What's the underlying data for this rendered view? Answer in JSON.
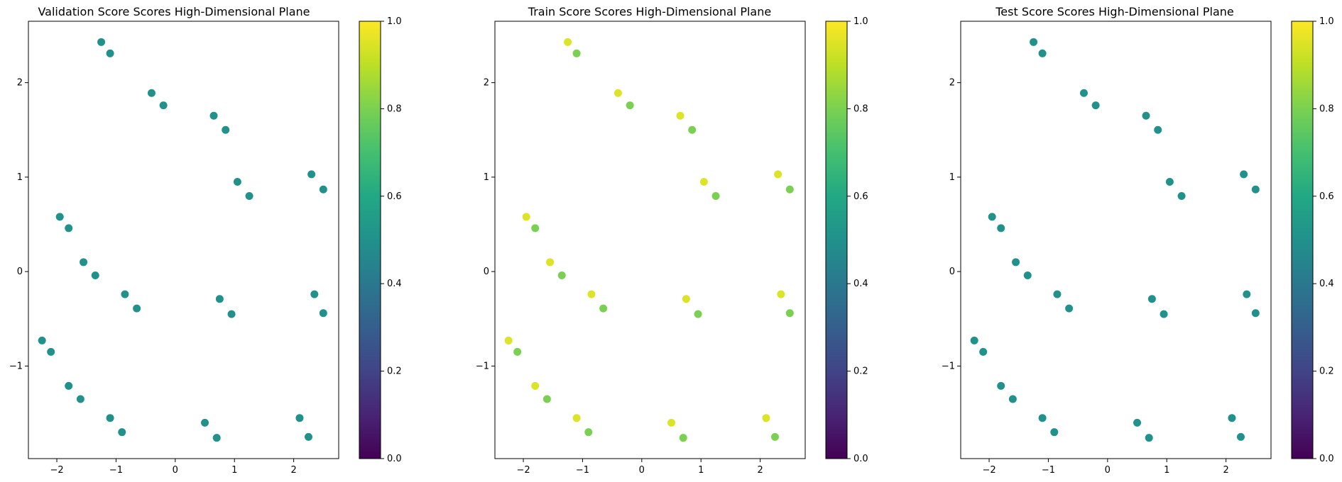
{
  "chart_data": [
    {
      "type": "scatter",
      "title": "Validation Score Scores High-Dimensional Plane",
      "xlabel": "",
      "ylabel": "",
      "xlim": [
        -2.48,
        2.76
      ],
      "ylim": [
        -1.98,
        2.65
      ],
      "xticks": [
        -2,
        -1,
        0,
        1,
        2
      ],
      "xtick_labels": [
        "−2",
        "−1",
        "0",
        "1",
        "2"
      ],
      "yticks": [
        -1,
        0,
        1,
        2
      ],
      "ytick_labels": [
        "−1",
        "0",
        "1",
        "2"
      ],
      "colorbar": {
        "min": 0.0,
        "max": 1.0,
        "ticks": [
          "0.0",
          "0.2",
          "0.4",
          "0.6",
          "0.8",
          "1.0"
        ],
        "colormap": "viridis"
      },
      "grid": false,
      "points": {
        "x": [
          -1.25,
          -1.1,
          -0.4,
          -0.2,
          0.65,
          0.85,
          1.05,
          1.25,
          2.3,
          2.5,
          -1.95,
          -1.8,
          -1.55,
          -1.35,
          -0.85,
          -0.65,
          0.75,
          0.95,
          2.35,
          2.5,
          -2.25,
          -2.1,
          -1.8,
          -1.6,
          -1.1,
          -0.9,
          0.5,
          0.7,
          2.1,
          2.25
        ],
        "y": [
          2.43,
          2.31,
          1.89,
          1.76,
          1.65,
          1.5,
          0.95,
          0.8,
          1.03,
          0.87,
          0.58,
          0.46,
          0.1,
          -0.04,
          -0.24,
          -0.39,
          -0.29,
          -0.45,
          -0.24,
          -0.44,
          -0.73,
          -0.85,
          -1.21,
          -1.35,
          -1.55,
          -1.7,
          -1.6,
          -1.76,
          -1.55,
          -1.75
        ],
        "values": [
          0.5,
          0.5,
          0.5,
          0.5,
          0.5,
          0.5,
          0.5,
          0.5,
          0.5,
          0.5,
          0.5,
          0.5,
          0.5,
          0.5,
          0.5,
          0.5,
          0.5,
          0.5,
          0.5,
          0.5,
          0.5,
          0.5,
          0.5,
          0.5,
          0.5,
          0.5,
          0.5,
          0.5,
          0.5,
          0.5
        ]
      }
    },
    {
      "type": "scatter",
      "title": "Train Score Scores High-Dimensional Plane",
      "xlabel": "",
      "ylabel": "",
      "xlim": [
        -2.48,
        2.76
      ],
      "ylim": [
        -1.98,
        2.65
      ],
      "xticks": [
        -2,
        -1,
        0,
        1,
        2
      ],
      "xtick_labels": [
        "−2",
        "−1",
        "0",
        "1",
        "2"
      ],
      "yticks": [
        -1,
        0,
        1,
        2
      ],
      "ytick_labels": [
        "−1",
        "0",
        "1",
        "2"
      ],
      "colorbar": {
        "min": 0.0,
        "max": 1.0,
        "ticks": [
          "0.0",
          "0.2",
          "0.4",
          "0.6",
          "0.8",
          "1.0"
        ],
        "colormap": "viridis"
      },
      "grid": false,
      "points": {
        "x": [
          -1.25,
          -1.1,
          -0.4,
          -0.2,
          0.65,
          0.85,
          1.05,
          1.25,
          2.3,
          2.5,
          -1.95,
          -1.8,
          -1.55,
          -1.35,
          -0.85,
          -0.65,
          0.75,
          0.95,
          2.35,
          2.5,
          -2.25,
          -2.1,
          -1.8,
          -1.6,
          -1.1,
          -0.9,
          0.5,
          0.7,
          2.1,
          2.25
        ],
        "y": [
          2.43,
          2.31,
          1.89,
          1.76,
          1.65,
          1.5,
          0.95,
          0.8,
          1.03,
          0.87,
          0.58,
          0.46,
          0.1,
          -0.04,
          -0.24,
          -0.39,
          -0.29,
          -0.45,
          -0.24,
          -0.44,
          -0.73,
          -0.85,
          -1.21,
          -1.35,
          -1.55,
          -1.7,
          -1.6,
          -1.76,
          -1.55,
          -1.75
        ],
        "values": [
          0.95,
          0.8,
          0.95,
          0.8,
          0.95,
          0.8,
          0.95,
          0.8,
          0.95,
          0.8,
          0.95,
          0.8,
          0.95,
          0.8,
          0.95,
          0.8,
          0.95,
          0.8,
          0.95,
          0.8,
          0.95,
          0.8,
          0.95,
          0.8,
          0.95,
          0.8,
          0.95,
          0.8,
          0.95,
          0.8
        ]
      }
    },
    {
      "type": "scatter",
      "title": "Test Score Scores High-Dimensional Plane",
      "xlabel": "",
      "ylabel": "",
      "xlim": [
        -2.48,
        2.76
      ],
      "ylim": [
        -1.98,
        2.65
      ],
      "xticks": [
        -2,
        -1,
        0,
        1,
        2
      ],
      "xtick_labels": [
        "−2",
        "−1",
        "0",
        "1",
        "2"
      ],
      "yticks": [
        -1,
        0,
        1,
        2
      ],
      "ytick_labels": [
        "−1",
        "0",
        "1",
        "2"
      ],
      "colorbar": {
        "min": 0.0,
        "max": 1.0,
        "ticks": [
          "0.0",
          "0.2",
          "0.4",
          "0.6",
          "0.8",
          "1.0"
        ],
        "colormap": "viridis"
      },
      "grid": false,
      "points": {
        "x": [
          -1.25,
          -1.1,
          -0.4,
          -0.2,
          0.65,
          0.85,
          1.05,
          1.25,
          2.3,
          2.5,
          -1.95,
          -1.8,
          -1.55,
          -1.35,
          -0.85,
          -0.65,
          0.75,
          0.95,
          2.35,
          2.5,
          -2.25,
          -2.1,
          -1.8,
          -1.6,
          -1.1,
          -0.9,
          0.5,
          0.7,
          2.1,
          2.25
        ],
        "y": [
          2.43,
          2.31,
          1.89,
          1.76,
          1.65,
          1.5,
          0.95,
          0.8,
          1.03,
          0.87,
          0.58,
          0.46,
          0.1,
          -0.04,
          -0.24,
          -0.39,
          -0.29,
          -0.45,
          -0.24,
          -0.44,
          -0.73,
          -0.85,
          -1.21,
          -1.35,
          -1.55,
          -1.7,
          -1.6,
          -1.76,
          -1.55,
          -1.75
        ],
        "values": [
          0.5,
          0.5,
          0.5,
          0.5,
          0.5,
          0.5,
          0.5,
          0.5,
          0.5,
          0.5,
          0.5,
          0.5,
          0.5,
          0.5,
          0.5,
          0.5,
          0.5,
          0.5,
          0.5,
          0.5,
          0.5,
          0.5,
          0.5,
          0.5,
          0.5,
          0.5,
          0.5,
          0.5,
          0.5,
          0.5
        ]
      }
    }
  ]
}
